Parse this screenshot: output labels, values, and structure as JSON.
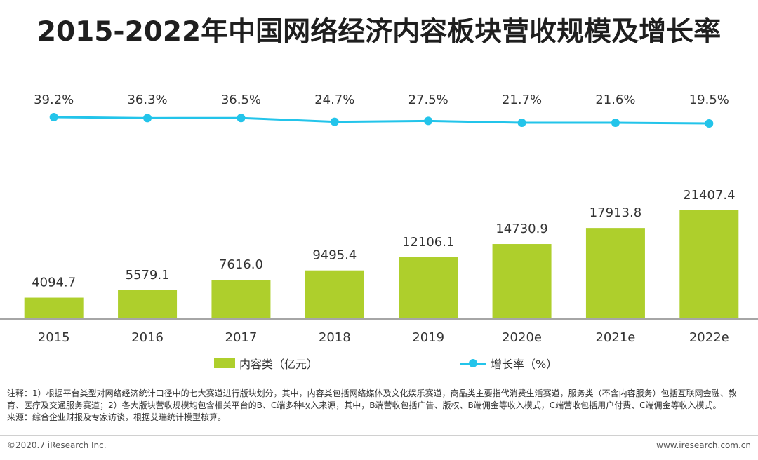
{
  "title": "2015-2022年中国网络经济内容板块营收规模及增长率",
  "chart_data": {
    "type": "bar",
    "categories": [
      "2015",
      "2016",
      "2017",
      "2018",
      "2019",
      "2020e",
      "2021e",
      "2022e"
    ],
    "series": [
      {
        "name": "内容类（亿元）",
        "type": "bar",
        "color": "#aecf2c",
        "values": [
          4094.7,
          5579.1,
          7616.0,
          9495.4,
          12106.1,
          14730.9,
          17913.8,
          21407.4
        ],
        "labels": [
          "4094.7",
          "5579.1",
          "7616.0",
          "9495.4",
          "12106.1",
          "14730.9",
          "17913.8",
          "21407.4"
        ]
      },
      {
        "name": "增长率（%）",
        "type": "line",
        "color": "#23c4ea",
        "values": [
          39.2,
          36.3,
          36.5,
          24.7,
          27.5,
          21.7,
          21.6,
          19.5
        ],
        "labels": [
          "39.2%",
          "36.3%",
          "36.5%",
          "24.7%",
          "27.5%",
          "21.7%",
          "21.6%",
          "19.5%"
        ]
      }
    ],
    "legend": [
      "内容类（亿元）",
      "增长率（%）"
    ],
    "legend_position": "bottom",
    "grid": false
  },
  "legend": {
    "bar_label": "内容类（亿元）",
    "line_label": "增长率（%）"
  },
  "note": {
    "line1": "注释：1）根据平台类型对网络经济统计口径中的七大赛道进行版块划分，其中，内容类包括网络媒体及文化娱乐赛道，商品类主要指代消费生活赛道，服务类（不含内容服务）包括互联网金融、教育、医疗及交通服务赛道；2）各大版块营收规模均包含相关平台的B、C端多种收入来源，其中，B端营收包括广告、版权、B端佣金等收入模式，C端营收包括用户付费、C端佣金等收入模式。",
    "source": "来源：综合企业财报及专家访谈，根据艾瑞统计模型核算。"
  },
  "footer": {
    "copyright": "©2020.7 iResearch Inc.",
    "website": "www.iresearch.com.cn"
  }
}
